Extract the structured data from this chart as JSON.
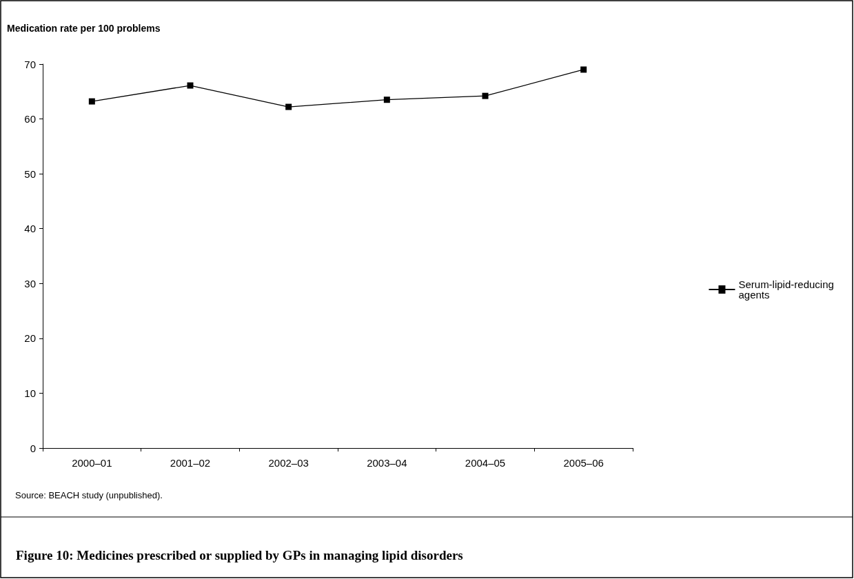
{
  "chart_data": {
    "type": "line",
    "title": "Figure 10: Medicines prescribed or supplied by GPs in managing lipid disorders",
    "ylabel": "Medication rate per 100 problems",
    "categories": [
      "2000–01",
      "2001–02",
      "2002–03",
      "2003–04",
      "2004–05",
      "2005–06"
    ],
    "series": [
      {
        "name": "Serum-lipid-reducing agents",
        "color": "#000000",
        "values": [
          63.2,
          66.1,
          62.2,
          63.5,
          64.2,
          69.0
        ]
      }
    ],
    "ylim": [
      0,
      70
    ],
    "yticks": [
      0,
      10,
      20,
      30,
      40,
      50,
      60,
      70
    ],
    "grid": false,
    "legend": "right",
    "marker": "square",
    "line_style": "solid",
    "annotations": [
      "Source: BEACH study (unpublished)."
    ]
  }
}
